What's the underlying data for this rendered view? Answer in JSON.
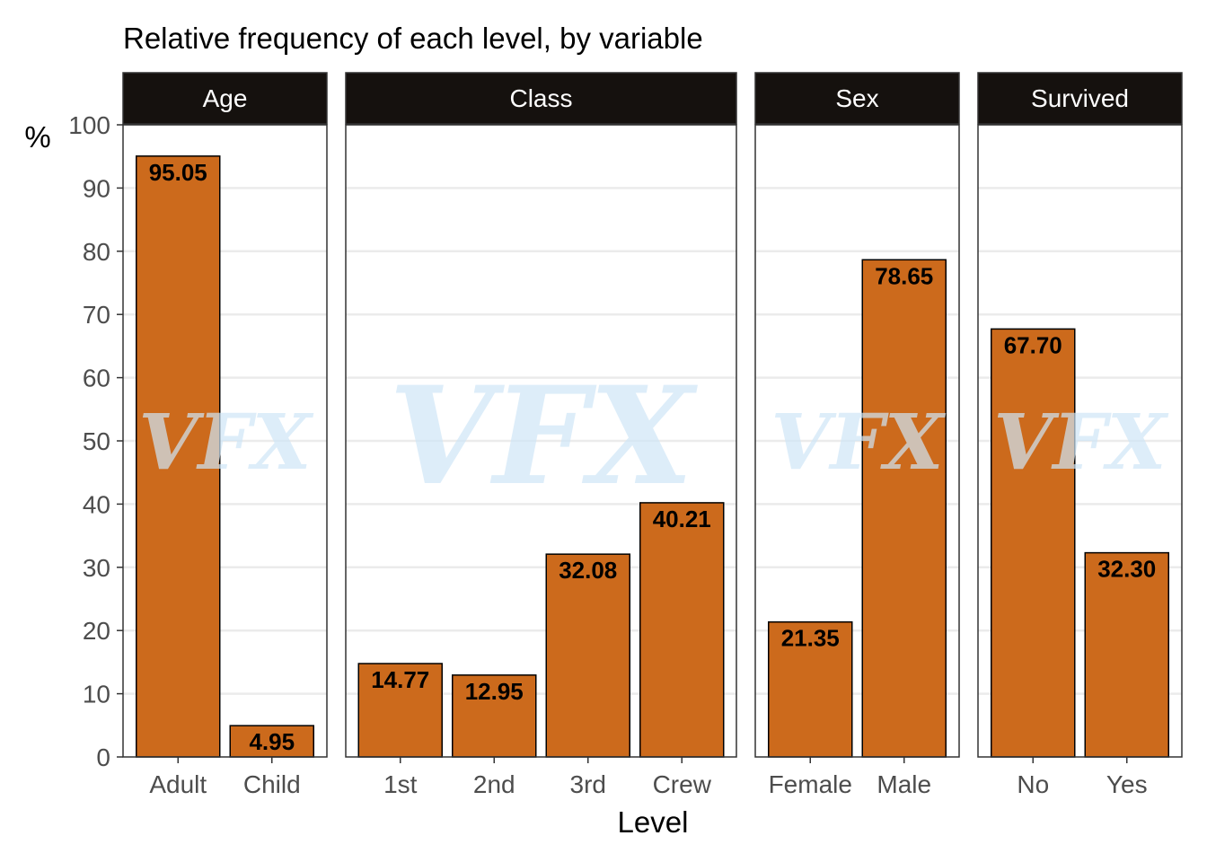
{
  "chart_data": {
    "type": "bar",
    "title": "Relative frequency of each level, by variable",
    "xlabel": "Level",
    "ylabel": "%",
    "ylim": [
      0,
      100
    ],
    "yticks": [
      0,
      10,
      20,
      30,
      40,
      50,
      60,
      70,
      80,
      90,
      100
    ],
    "grid": true,
    "bar_color": "#cc6a1c",
    "strip_color": "#15110e",
    "watermark": "VFX",
    "facets": [
      {
        "name": "Age",
        "categories": [
          "Adult",
          "Child"
        ],
        "values": [
          95.05,
          4.95
        ],
        "labels": [
          "95.05",
          "4.95"
        ]
      },
      {
        "name": "Class",
        "categories": [
          "1st",
          "2nd",
          "3rd",
          "Crew"
        ],
        "values": [
          14.77,
          12.95,
          32.08,
          40.21
        ],
        "labels": [
          "14.77",
          "12.95",
          "32.08",
          "40.21"
        ]
      },
      {
        "name": "Sex",
        "categories": [
          "Female",
          "Male"
        ],
        "values": [
          21.35,
          78.65
        ],
        "labels": [
          "21.35",
          "78.65"
        ]
      },
      {
        "name": "Survived",
        "categories": [
          "No",
          "Yes"
        ],
        "values": [
          67.7,
          32.3
        ],
        "labels": [
          "67.70",
          "32.30"
        ]
      }
    ]
  }
}
